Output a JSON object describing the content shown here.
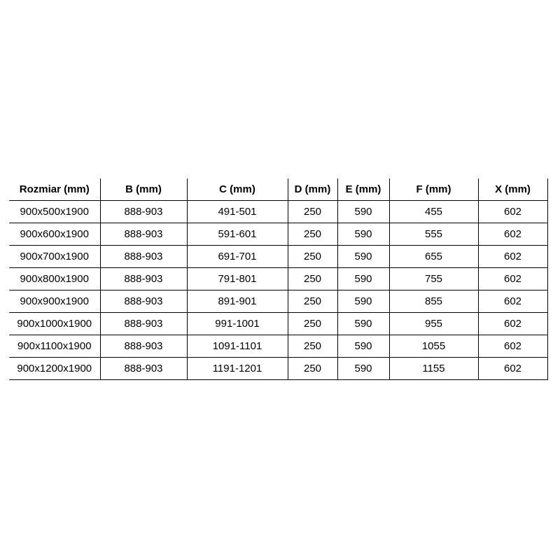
{
  "colors": {
    "background": "#ffffff",
    "border": "#000000",
    "text": "#000000"
  },
  "chart_data": {
    "type": "table",
    "title": "",
    "columns": [
      "Rozmiar (mm)",
      "B (mm)",
      "C (mm)",
      "D (mm)",
      "E (mm)",
      "F (mm)",
      "X (mm)"
    ],
    "rows": [
      [
        "900x500x1900",
        "888-903",
        "491-501",
        "250",
        "590",
        "455",
        "602"
      ],
      [
        "900x600x1900",
        "888-903",
        "591-601",
        "250",
        "590",
        "555",
        "602"
      ],
      [
        "900x700x1900",
        "888-903",
        "691-701",
        "250",
        "590",
        "655",
        "602"
      ],
      [
        "900x800x1900",
        "888-903",
        "791-801",
        "250",
        "590",
        "755",
        "602"
      ],
      [
        "900x900x1900",
        "888-903",
        "891-901",
        "250",
        "590",
        "855",
        "602"
      ],
      [
        "900x1000x1900",
        "888-903",
        "991-1001",
        "250",
        "590",
        "955",
        "602"
      ],
      [
        "900x1100x1900",
        "888-903",
        "1091-1101",
        "250",
        "590",
        "1055",
        "602"
      ],
      [
        "900x1200x1900",
        "888-903",
        "1191-1201",
        "250",
        "590",
        "1155",
        "602"
      ]
    ]
  }
}
